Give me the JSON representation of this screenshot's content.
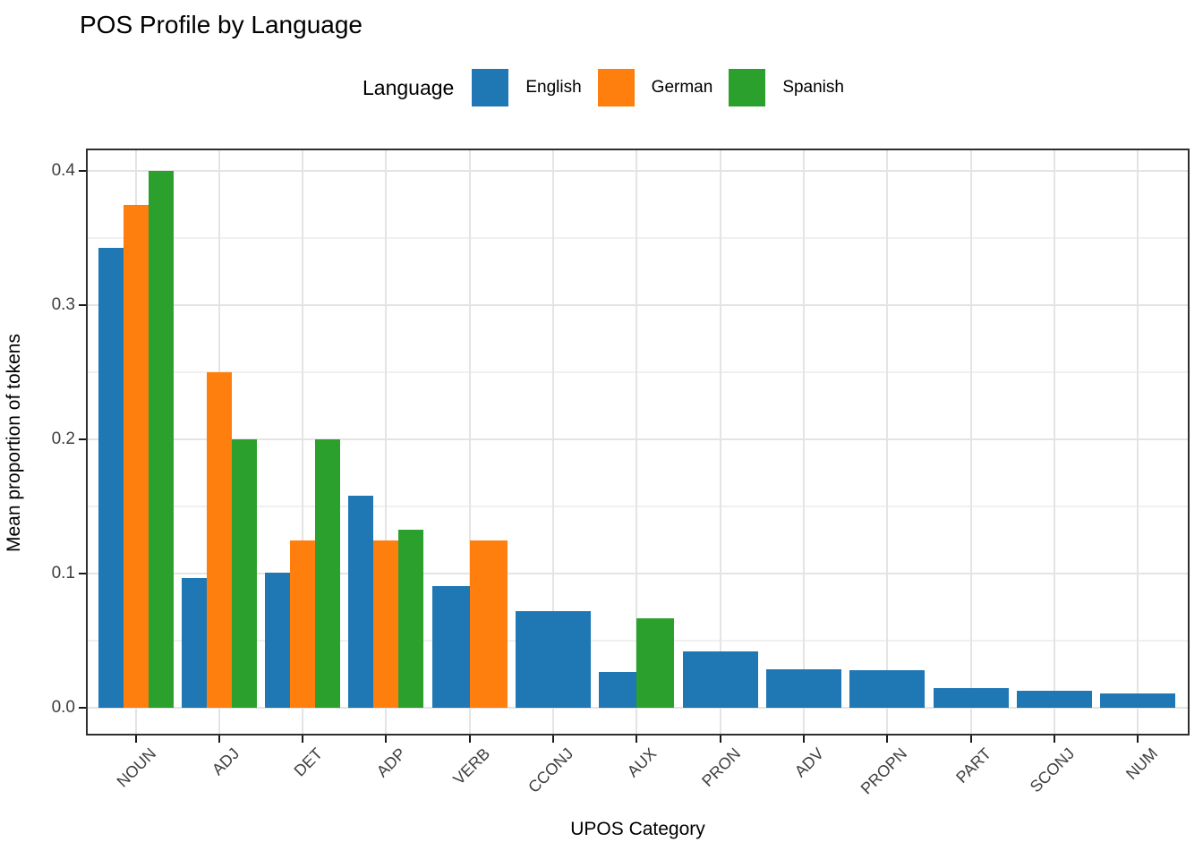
{
  "chart_data": {
    "type": "bar",
    "title": "POS Profile by Language",
    "xlabel": "UPOS Category",
    "ylabel": "Mean proportion of tokens",
    "legend_title": "Language",
    "legend_position": "top",
    "grid": "on",
    "ylim": [
      0,
      0.42
    ],
    "y_major_ticks": [
      0.0,
      0.1,
      0.2,
      0.3,
      0.4
    ],
    "y_tick_labels": [
      "0.0",
      "0.1",
      "0.2",
      "0.3",
      "0.4"
    ],
    "y_minor_ticks": [
      0.05,
      0.15,
      0.25,
      0.35
    ],
    "categories": [
      "NOUN",
      "ADJ",
      "DET",
      "ADP",
      "VERB",
      "CCONJ",
      "AUX",
      "PRON",
      "ADV",
      "PROPN",
      "PART",
      "SCONJ",
      "NUM"
    ],
    "series": [
      {
        "name": "English",
        "color": "#1f77b4",
        "values": [
          0.343,
          0.097,
          0.101,
          0.158,
          0.091,
          0.072,
          0.027,
          0.042,
          0.029,
          0.028,
          0.015,
          0.013,
          0.011
        ]
      },
      {
        "name": "German",
        "color": "#ff7f0e",
        "values": [
          0.375,
          0.25,
          0.125,
          0.125,
          0.125,
          null,
          null,
          null,
          null,
          null,
          null,
          null,
          null
        ]
      },
      {
        "name": "Spanish",
        "color": "#2ca02c",
        "values": [
          0.4,
          0.2,
          0.2,
          0.133,
          null,
          null,
          0.067,
          null,
          null,
          null,
          null,
          null,
          null
        ]
      }
    ]
  }
}
